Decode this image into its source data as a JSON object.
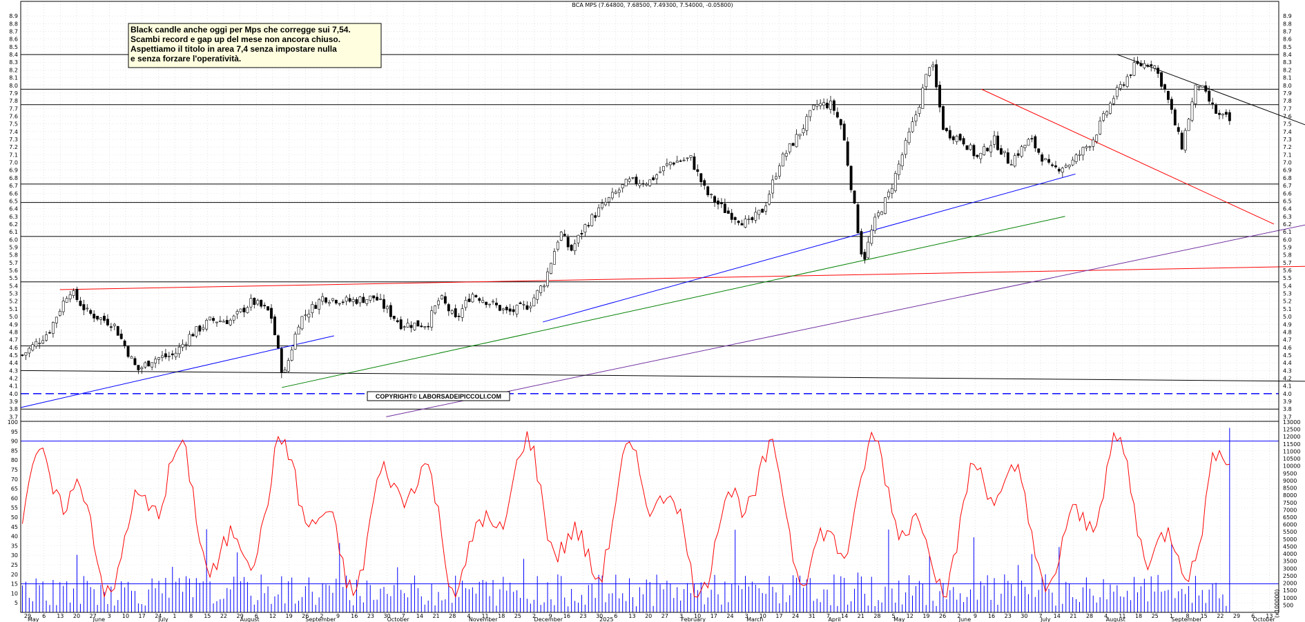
{
  "chart_data": [
    {
      "type": "candlestick",
      "title": "BCA MPS (7.64800, 7.68500, 7.49300, 7.54000, -0.05800)",
      "annotation": [
        "Black candle anche oggi per Mps che corregge sui 7,54.",
        "Scambi record e gap up del mese non ancora chiuso.",
        "Aspettiamo il titolo in area 7,4 senza impostare nulla",
        "e senza forzare l'operatività."
      ],
      "copyright": "COPYRIGHT© LABORSADEIPICCOLI.COM",
      "ylim": [
        3.65,
        9.0
      ],
      "yticks": [
        3.7,
        3.8,
        3.9,
        4.0,
        4.1,
        4.2,
        4.3,
        4.4,
        4.5,
        4.6,
        4.7,
        4.8,
        4.9,
        5.0,
        5.1,
        5.2,
        5.3,
        5.4,
        5.5,
        5.6,
        5.7,
        5.8,
        5.9,
        6.0,
        6.1,
        6.2,
        6.3,
        6.4,
        6.5,
        6.6,
        6.7,
        6.8,
        6.9,
        7.0,
        7.1,
        7.2,
        7.3,
        7.4,
        7.5,
        7.6,
        7.7,
        7.8,
        7.9,
        8.0,
        8.1,
        8.2,
        8.3,
        8.4,
        8.5,
        8.6,
        8.7,
        8.8,
        8.9
      ],
      "ytick_labels": [
        "3.7",
        "3.8",
        "3.9",
        "4.0",
        "4.1",
        "4.2",
        "4.3",
        "4.4",
        "4.5",
        "4.6",
        "4.7",
        "4.8",
        "4.9",
        "5.0",
        "5.1",
        "5.2",
        "5.3",
        "5.4",
        "5.5",
        "5.6",
        "5.7",
        "5.8",
        "5.9",
        "6.0",
        "6.1",
        "6.2",
        "6.3",
        "6.4",
        "6.5",
        "6.6",
        "6.7",
        "6.8",
        "6.9",
        "7.0",
        "7.1",
        "7.2",
        "7.3",
        "7.4",
        "7.5",
        "7.6",
        "7.7",
        "7.8",
        "7.9",
        "8.0",
        "8.1",
        "8.2",
        "8.3",
        "8.4",
        "8.5",
        "8.6",
        "8.7",
        "8.8",
        "8.9"
      ],
      "trading_days": 356,
      "price_path": [
        [
          0,
          4.5
        ],
        [
          10,
          4.8
        ],
        [
          18,
          5.35
        ],
        [
          25,
          5.05
        ],
        [
          35,
          4.9
        ],
        [
          44,
          4.3
        ],
        [
          50,
          4.45
        ],
        [
          58,
          4.5
        ],
        [
          64,
          4.75
        ],
        [
          72,
          4.95
        ],
        [
          80,
          4.95
        ],
        [
          88,
          5.2
        ],
        [
          95,
          5.05
        ],
        [
          100,
          4.2
        ],
        [
          106,
          4.95
        ],
        [
          115,
          5.25
        ],
        [
          125,
          5.2
        ],
        [
          135,
          5.25
        ],
        [
          145,
          4.9
        ],
        [
          155,
          4.9
        ],
        [
          160,
          5.25
        ],
        [
          166,
          4.95
        ],
        [
          172,
          5.3
        ],
        [
          178,
          5.2
        ],
        [
          186,
          5.05
        ],
        [
          194,
          5.15
        ],
        [
          200,
          5.45
        ],
        [
          206,
          6.1
        ],
        [
          210,
          5.85
        ],
        [
          216,
          6.2
        ],
        [
          224,
          6.5
        ],
        [
          232,
          6.75
        ],
        [
          240,
          6.75
        ],
        [
          248,
          7.0
        ],
        [
          256,
          7.05
        ],
        [
          262,
          6.6
        ],
        [
          270,
          6.35
        ],
        [
          278,
          6.2
        ],
        [
          284,
          6.4
        ],
        [
          290,
          7.0
        ],
        [
          298,
          7.4
        ],
        [
          304,
          7.75
        ],
        [
          310,
          7.75
        ],
        [
          314,
          7.45
        ],
        [
          319,
          6.35
        ],
        [
          322,
          5.7
        ],
        [
          326,
          6.2
        ],
        [
          332,
          6.6
        ],
        [
          337,
          7.1
        ],
        [
          343,
          7.7
        ],
        [
          348,
          8.35
        ],
        [
          353,
          7.4
        ],
        [
          360,
          7.3
        ],
        [
          366,
          7.05
        ],
        [
          372,
          7.3
        ],
        [
          378,
          7.0
        ],
        [
          386,
          7.3
        ],
        [
          394,
          6.9
        ],
        [
          402,
          7.0
        ],
        [
          410,
          7.3
        ],
        [
          418,
          7.85
        ],
        [
          426,
          8.25
        ],
        [
          433,
          8.3
        ],
        [
          438,
          7.9
        ],
        [
          444,
          7.2
        ],
        [
          450,
          8.05
        ],
        [
          458,
          7.6
        ],
        [
          465,
          7.54
        ]
      ],
      "overbought_level": 8.4,
      "resistance_levels": [
        8.4,
        7.95,
        7.75,
        6.72,
        6.48,
        6.04,
        5.45,
        4.62,
        3.8
      ],
      "dashed_level": 4.0,
      "trendlines": [
        {
          "color": "#000000",
          "from": [
            420,
            8.4
          ],
          "to": [
            540,
            6.88
          ]
        },
        {
          "color": "#ff0000",
          "from": [
            368,
            7.95
          ],
          "to": [
            480,
            6.2
          ]
        },
        {
          "color": "#ff0000",
          "from": [
            15,
            5.35
          ],
          "to": [
            600,
            5.72
          ]
        },
        {
          "color": "#7030a0",
          "from": [
            140,
            3.7
          ],
          "to": [
            560,
            6.67
          ]
        },
        {
          "color": "#0000ff",
          "from": [
            0,
            3.82
          ],
          "to": [
            120,
            4.75
          ]
        },
        {
          "color": "#0000ff",
          "from": [
            200,
            4.93
          ],
          "to": [
            404,
            6.85
          ]
        },
        {
          "color": "#008000",
          "from": [
            100,
            4.08
          ],
          "to": [
            400,
            6.3
          ]
        },
        {
          "color": "#000000",
          "from": [
            0,
            4.3
          ],
          "to": [
            600,
            4.13
          ]
        }
      ],
      "x_month_labels": [
        "May",
        "June",
        "July",
        "August",
        "September",
        "October",
        "November",
        "December",
        "2025",
        "February",
        "March",
        "April",
        "May",
        "June",
        "July",
        "August",
        "September",
        "October"
      ],
      "x_day_labels": [
        "29",
        "6",
        "13",
        "20",
        "27",
        "3",
        "10",
        "17",
        "24",
        "1",
        "8",
        "15",
        "22",
        "29",
        "6",
        "12",
        "19",
        "26",
        "2",
        "9",
        "16",
        "23",
        "30",
        "7",
        "14",
        "21",
        "28",
        "4",
        "11",
        "18",
        "25",
        "2",
        "9",
        "16",
        "23",
        "30",
        "6",
        "13",
        "20",
        "27",
        "3",
        "10",
        "17",
        "24",
        "3",
        "10",
        "17",
        "24",
        "31",
        "7",
        "14",
        "21",
        "28",
        "5",
        "12",
        "19",
        "26",
        "2",
        "9",
        "16",
        "23",
        "30",
        "7",
        "14",
        "21",
        "28",
        "4",
        "11",
        "18",
        "25",
        "1",
        "8",
        "15",
        "22",
        "29",
        "6",
        "13"
      ]
    },
    {
      "type": "line",
      "name": "Stochastic oscillator",
      "ylim": [
        0,
        100
      ],
      "yticks": [
        5,
        10,
        15,
        20,
        25,
        30,
        35,
        40,
        45,
        50,
        55,
        60,
        65,
        70,
        75,
        80,
        85,
        90,
        95,
        100
      ],
      "ytick_labels": [
        "5",
        "10",
        "15",
        "20",
        "25",
        "30",
        "35",
        "40",
        "45",
        "50",
        "55",
        "60",
        "65",
        "70",
        "75",
        "80",
        "85",
        "90",
        "95",
        "100"
      ],
      "levels": [
        90,
        15
      ],
      "line_color": "#ff0000",
      "points": 356
    },
    {
      "type": "bar",
      "name": "Volume",
      "ylim": [
        0,
        13000
      ],
      "yticks": [
        500,
        1000,
        1500,
        2000,
        2500,
        3000,
        3500,
        4000,
        4500,
        5000,
        5500,
        6000,
        6500,
        7000,
        7500,
        8000,
        8500,
        9000,
        9500,
        10000,
        10500,
        11000,
        11500,
        12000,
        12500,
        13000
      ],
      "ytick_labels": [
        "500",
        "1000",
        "1500",
        "2000",
        "2500",
        "3000",
        "3500",
        "4000",
        "4500",
        "5000",
        "5500",
        "6000",
        "6500",
        "7000",
        "7500",
        "8000",
        "8500",
        "9000",
        "9500",
        "10000",
        "10500",
        "11000",
        "11500",
        "12000",
        "12500",
        "13000"
      ],
      "bar_color": "#0000ff",
      "last_bar_value": 12600,
      "axis_note": "(x100000)"
    }
  ],
  "colors": {
    "up": "#ffffff",
    "down": "#000000",
    "grid": "#b0b0b0",
    "osc": "#ff0000",
    "volume": "#0000ff"
  }
}
